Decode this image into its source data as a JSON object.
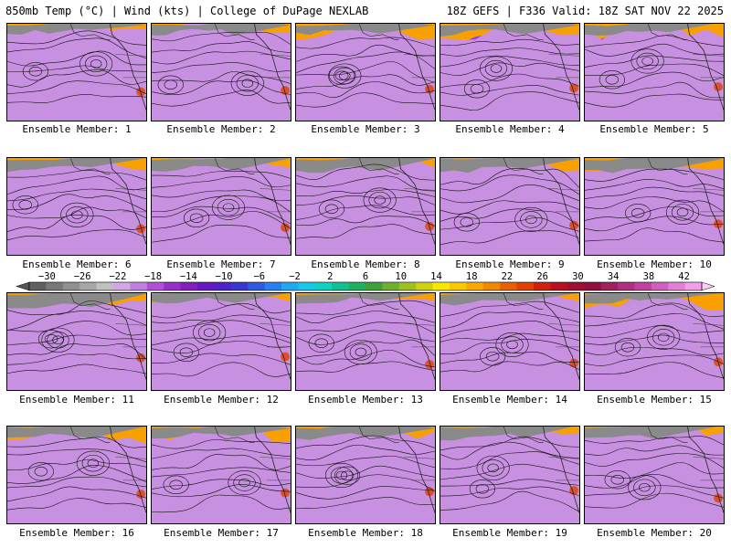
{
  "header": {
    "left": "850mb Temp (°C) | Wind (kts) | College of DuPage NEXLAB",
    "right": "18Z GEFS | F336 Valid: 18Z SAT NOV 22 2025"
  },
  "colorbar": {
    "labels": [
      "−30",
      "−26",
      "−22",
      "−18",
      "−14",
      "−10",
      "−6",
      "−2",
      "2",
      "6",
      "10",
      "14",
      "18",
      "22",
      "26",
      "30",
      "34",
      "38",
      "42"
    ],
    "min": -32,
    "max": 44,
    "step": 2,
    "colors": [
      "#606060",
      "#787878",
      "#909090",
      "#a8a8a8",
      "#c0c0c0",
      "#d0a8e8",
      "#c080e0",
      "#b050d8",
      "#9830c8",
      "#8020b8",
      "#6818c0",
      "#5020c8",
      "#3838d0",
      "#3058e0",
      "#2880f0",
      "#20a8f0",
      "#18c8e8",
      "#10d0c0",
      "#10c090",
      "#20b060",
      "#40a040",
      "#70b030",
      "#a0c020",
      "#d0d010",
      "#f8e800",
      "#f8c800",
      "#f8a800",
      "#f08800",
      "#e86000",
      "#e04000",
      "#d02010",
      "#b81020",
      "#a01030",
      "#901040",
      "#a02060",
      "#b03080",
      "#c040a0",
      "#d060c0",
      "#e080d8",
      "#f0a0e8"
    ]
  },
  "members": [
    {
      "label": "Ensemble Member: 1"
    },
    {
      "label": "Ensemble Member: 2"
    },
    {
      "label": "Ensemble Member: 3"
    },
    {
      "label": "Ensemble Member: 4"
    },
    {
      "label": "Ensemble Member: 5"
    },
    {
      "label": "Ensemble Member: 6"
    },
    {
      "label": "Ensemble Member: 7"
    },
    {
      "label": "Ensemble Member: 8"
    },
    {
      "label": "Ensemble Member: 9"
    },
    {
      "label": "Ensemble Member: 10"
    },
    {
      "label": "Ensemble Member: 11"
    },
    {
      "label": "Ensemble Member: 12"
    },
    {
      "label": "Ensemble Member: 13"
    },
    {
      "label": "Ensemble Member: 14"
    },
    {
      "label": "Ensemble Member: 15"
    },
    {
      "label": "Ensemble Member: 16"
    },
    {
      "label": "Ensemble Member: 17"
    },
    {
      "label": "Ensemble Member: 18"
    },
    {
      "label": "Ensemble Member: 19"
    },
    {
      "label": "Ensemble Member: 20"
    }
  ]
}
